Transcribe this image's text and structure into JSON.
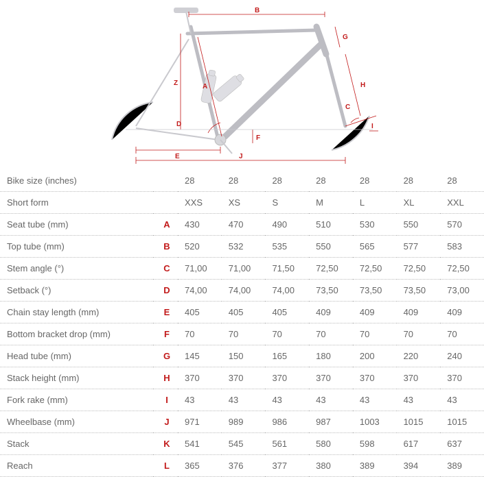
{
  "diagram": {
    "labels": [
      "A",
      "B",
      "C",
      "D",
      "E",
      "F",
      "G",
      "H",
      "I",
      "J",
      "Z"
    ],
    "color_dim": "#c21a1a",
    "color_frame": "#bdbdc3"
  },
  "table": {
    "columns_count": 7,
    "rows": [
      {
        "label": "Bike size (inches)",
        "letter": "",
        "values": [
          "28",
          "28",
          "28",
          "28",
          "28",
          "28",
          "28"
        ]
      },
      {
        "label": "Short form",
        "letter": "",
        "values": [
          "XXS",
          "XS",
          "S",
          "M",
          "L",
          "XL",
          "XXL"
        ]
      },
      {
        "label": "Seat tube (mm)",
        "letter": "A",
        "values": [
          "430",
          "470",
          "490",
          "510",
          "530",
          "550",
          "570"
        ]
      },
      {
        "label": "Top tube (mm)",
        "letter": "B",
        "values": [
          "520",
          "532",
          "535",
          "550",
          "565",
          "577",
          "583"
        ]
      },
      {
        "label": "Stem angle (°)",
        "letter": "C",
        "values": [
          "71,00",
          "71,00",
          "71,50",
          "72,50",
          "72,50",
          "72,50",
          "72,50"
        ]
      },
      {
        "label": "Setback (°)",
        "letter": "D",
        "values": [
          "74,00",
          "74,00",
          "74,00",
          "73,50",
          "73,50",
          "73,50",
          "73,00"
        ]
      },
      {
        "label": "Chain stay length (mm)",
        "letter": "E",
        "values": [
          "405",
          "405",
          "405",
          "409",
          "409",
          "409",
          "409"
        ]
      },
      {
        "label": "Bottom bracket drop (mm)",
        "letter": "F",
        "values": [
          "70",
          "70",
          "70",
          "70",
          "70",
          "70",
          "70"
        ]
      },
      {
        "label": "Head tube (mm)",
        "letter": "G",
        "values": [
          "145",
          "150",
          "165",
          "180",
          "200",
          "220",
          "240"
        ]
      },
      {
        "label": "Stack height (mm)",
        "letter": "H",
        "values": [
          "370",
          "370",
          "370",
          "370",
          "370",
          "370",
          "370"
        ]
      },
      {
        "label": "Fork rake (mm)",
        "letter": "I",
        "values": [
          "43",
          "43",
          "43",
          "43",
          "43",
          "43",
          "43"
        ]
      },
      {
        "label": "Wheelbase (mm)",
        "letter": "J",
        "values": [
          "971",
          "989",
          "986",
          "987",
          "1003",
          "1015",
          "1015"
        ]
      },
      {
        "label": "Stack",
        "letter": "K",
        "values": [
          "541",
          "545",
          "561",
          "580",
          "598",
          "617",
          "637"
        ]
      },
      {
        "label": "Reach",
        "letter": "L",
        "values": [
          "365",
          "376",
          "377",
          "380",
          "389",
          "394",
          "389"
        ]
      }
    ]
  }
}
